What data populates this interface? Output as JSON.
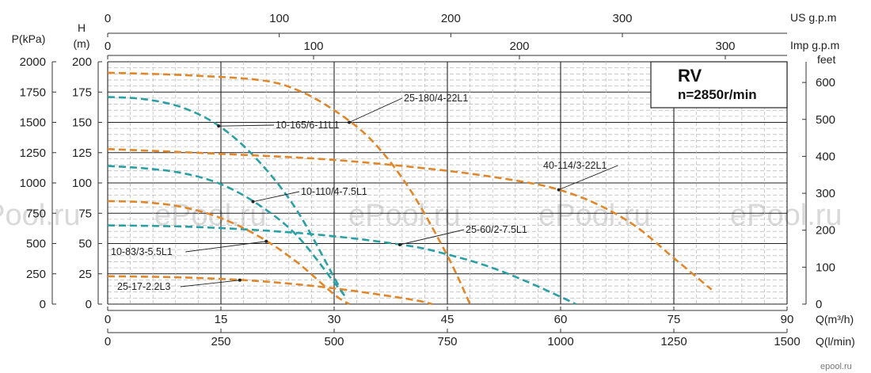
{
  "chart_data": {
    "type": "line",
    "colors": {
      "orange": "#e0872b",
      "teal": "#2aa0a5",
      "grid": "#bdbdbd",
      "axis": "#333333"
    },
    "info_box": {
      "title": "RV",
      "subtitle": "n=2850r/min"
    },
    "watermark": "ePool.ru",
    "footer_logo": "epool.ru",
    "axes": {
      "x_q_m3h": {
        "label": "Q(m³/h)",
        "range": [
          0,
          90
        ],
        "ticks": [
          "0",
          "15",
          "30",
          "45",
          "60",
          "75",
          "90"
        ]
      },
      "x_q_lmin": {
        "label": "Q(l/min)",
        "range": [
          0,
          1500
        ],
        "ticks": [
          "0",
          "250",
          "500",
          "750",
          "1000",
          "1250",
          "1500"
        ]
      },
      "x_us_gpm": {
        "label": "US g.p.m",
        "range": [
          0,
          396
        ],
        "ticks": [
          "0",
          "100",
          "200",
          "300"
        ]
      },
      "x_imp_gpm": {
        "label": "Imp g.p.m",
        "range": [
          0,
          330
        ],
        "ticks": [
          "0",
          "100",
          "200",
          "300"
        ]
      },
      "y_head_m": {
        "label": "H (m)",
        "range": [
          0,
          200
        ],
        "ticks": [
          "0",
          "25",
          "50",
          "75",
          "100",
          "125",
          "150",
          "175",
          "200"
        ]
      },
      "y_pressure_kpa": {
        "label": "P(kPa)",
        "range": [
          0,
          2000
        ],
        "ticks": [
          "0",
          "250",
          "500",
          "750",
          "1000",
          "1250",
          "1500",
          "1750",
          "2000"
        ]
      },
      "y_feet": {
        "label": "feet",
        "range": [
          0,
          656
        ],
        "ticks": [
          "0",
          "100",
          "200",
          "300",
          "400",
          "500",
          "600"
        ]
      }
    },
    "series": [
      {
        "name": "25-180/4-22L1",
        "color": "orange",
        "x": [
          0,
          10,
          20,
          25,
          30,
          35,
          40,
          45,
          48
        ],
        "y": [
          191,
          189,
          185,
          177,
          160,
          135,
          95,
          40,
          0
        ]
      },
      {
        "name": "10-165/6-11L1",
        "color": "teal",
        "x": [
          0,
          5,
          10,
          15,
          20,
          25,
          30,
          31.5
        ],
        "y": [
          171,
          169,
          162,
          146,
          118,
          78,
          22,
          5
        ]
      },
      {
        "name": "40-114/3-22L1",
        "color": "orange",
        "x": [
          0,
          15,
          30,
          45,
          55,
          60,
          65,
          70,
          75,
          80
        ],
        "y": [
          128,
          124,
          119,
          110,
          101,
          94,
          82,
          64,
          38,
          12
        ]
      },
      {
        "name": "10-110/4-7.5L1",
        "color": "teal",
        "x": [
          0,
          5,
          10,
          15,
          20,
          25,
          30,
          31.5
        ],
        "y": [
          114,
          112,
          108,
          99,
          82,
          57,
          18,
          6
        ]
      },
      {
        "name": "25-60/2-7.5L1",
        "color": "teal",
        "x": [
          0,
          10,
          20,
          30,
          40,
          45,
          50,
          55,
          60,
          62
        ],
        "y": [
          65,
          64,
          61,
          56,
          48,
          41,
          32,
          20,
          6,
          0
        ]
      },
      {
        "name": "10-83/3-5.5L1",
        "color": "orange",
        "x": [
          0,
          5,
          10,
          15,
          20,
          25,
          30,
          32
        ],
        "y": [
          85,
          84,
          80,
          71,
          56,
          35,
          8,
          0
        ]
      },
      {
        "name": "25-17-2.2L3",
        "color": "orange",
        "x": [
          0,
          10,
          20,
          30,
          40,
          43
        ],
        "y": [
          23,
          22,
          19,
          13,
          4,
          0
        ]
      }
    ],
    "labels": [
      {
        "series": "25-180/4-22L1",
        "text": "25-180/4-22L1"
      },
      {
        "series": "10-165/6-11L1",
        "text": "10-165/6-11L1"
      },
      {
        "series": "40-114/3-22L1",
        "text": "40-114/3-22L1"
      },
      {
        "series": "10-110/4-7.5L1",
        "text": "10-110/4-7.5L1"
      },
      {
        "series": "25-60/2-7.5L1",
        "text": "25-60/2-7.5L1"
      },
      {
        "series": "10-83/3-5.5L1",
        "text": "10-83/3-5.5L1"
      },
      {
        "series": "25-17-2.2L3",
        "text": "25-17-2.2L3"
      }
    ]
  }
}
